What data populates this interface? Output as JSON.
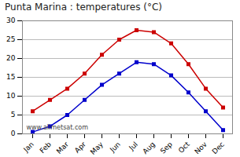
{
  "chart_data": {
    "type": "line",
    "title": "Punta Marina : temperatures (°C)",
    "categories": [
      "Jan",
      "Feb",
      "Mar",
      "Apr",
      "May",
      "Jun",
      "Jul",
      "Aug",
      "Sep",
      "Oct",
      "Nov",
      "Dec"
    ],
    "series": [
      {
        "color": "#cc0000",
        "marker": "square",
        "values": [
          6,
          9,
          12,
          16,
          21,
          25,
          27.5,
          27,
          24,
          18.5,
          12,
          7
        ]
      },
      {
        "color": "#0000cc",
        "marker": "square",
        "values": [
          0.5,
          2,
          5,
          9,
          13,
          16,
          19,
          18.5,
          15.5,
          11,
          6,
          1
        ]
      }
    ],
    "ylim": [
      0,
      30
    ],
    "yticks": [
      0,
      5,
      10,
      15,
      20,
      25,
      30
    ],
    "grid": true,
    "annotations": [
      "www.allmetsat.com"
    ]
  }
}
